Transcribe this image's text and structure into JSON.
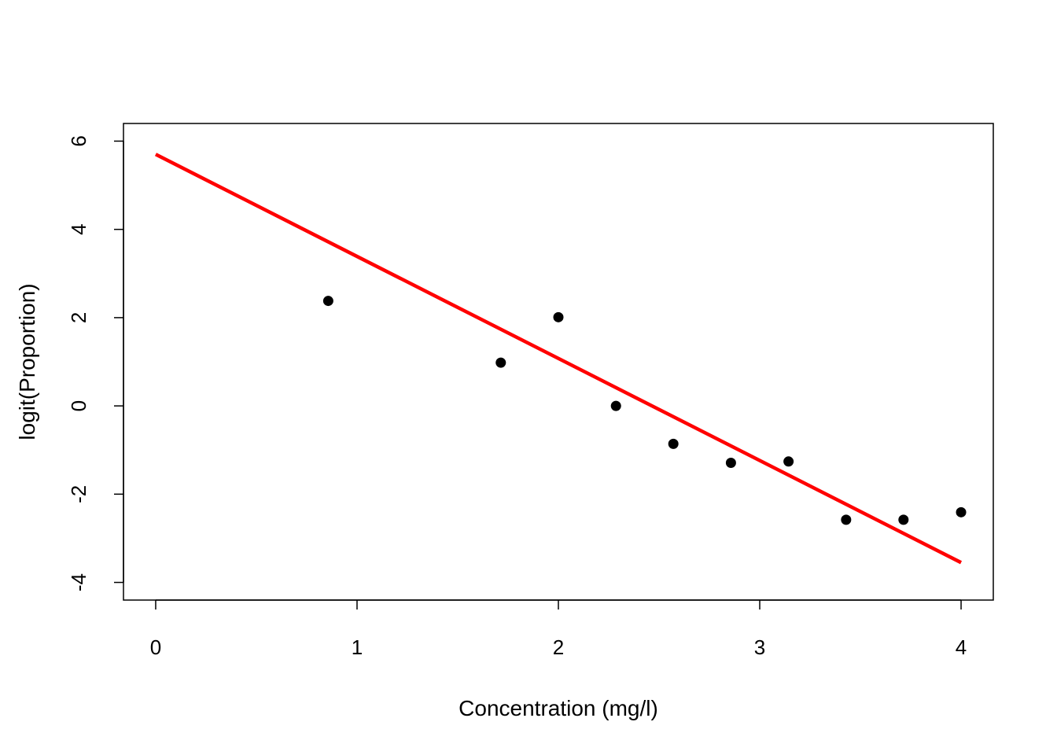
{
  "chart_data": {
    "type": "scatter",
    "title": "",
    "xlabel": "Concentration (mg/l)",
    "ylabel": "logit(Proportion)",
    "xlim": [
      -0.16,
      4.16
    ],
    "ylim": [
      -4.4,
      6.4
    ],
    "x_ticks": [
      0,
      1,
      2,
      3,
      4
    ],
    "y_ticks": [
      -4,
      -2,
      0,
      2,
      4,
      6
    ],
    "grid": false,
    "legend": "none",
    "series": [
      {
        "kind": "points",
        "color": "#000000",
        "points": [
          {
            "x": 0.857,
            "y": 2.38
          },
          {
            "x": 1.714,
            "y": 0.98
          },
          {
            "x": 2.0,
            "y": 2.01
          },
          {
            "x": 2.286,
            "y": 0.0
          },
          {
            "x": 2.571,
            "y": -0.86
          },
          {
            "x": 2.857,
            "y": -1.29
          },
          {
            "x": 3.143,
            "y": -1.26
          },
          {
            "x": 3.429,
            "y": -2.58
          },
          {
            "x": 3.714,
            "y": -2.58
          },
          {
            "x": 4.0,
            "y": -2.41
          }
        ]
      },
      {
        "kind": "fitted-line",
        "color": "#ff0000",
        "points": [
          {
            "x": 0,
            "y": 5.7
          },
          {
            "x": 4,
            "y": -3.55
          }
        ]
      }
    ]
  }
}
